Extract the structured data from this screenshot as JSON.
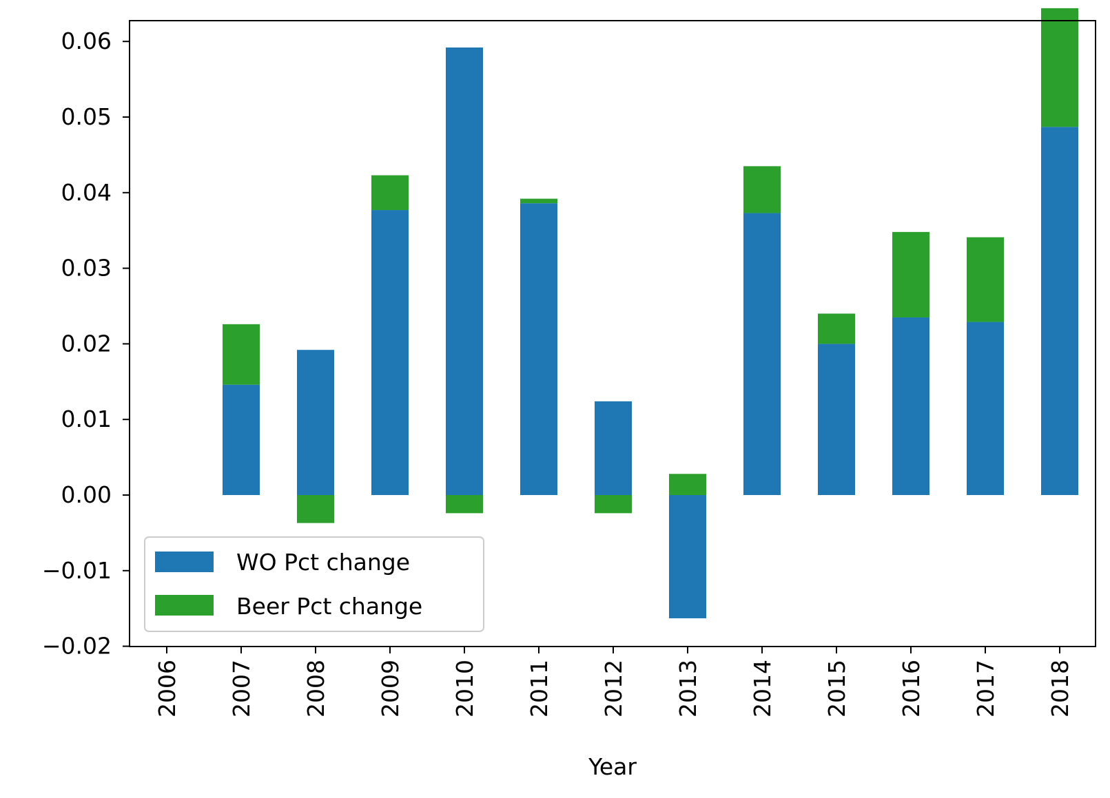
{
  "chart_data": {
    "type": "bar",
    "stacked": true,
    "xlabel": "Year",
    "ylabel": "",
    "title": "",
    "categories": [
      "2006",
      "2007",
      "2008",
      "2009",
      "2010",
      "2011",
      "2012",
      "2013",
      "2014",
      "2015",
      "2016",
      "2017",
      "2018"
    ],
    "series": [
      {
        "name": "WO Pct change",
        "color": "#1f77b4",
        "values": [
          null,
          0.0146,
          0.0192,
          0.0377,
          0.0592,
          0.0386,
          0.0124,
          -0.0163,
          0.0373,
          0.02,
          0.0235,
          0.0229,
          0.0487
        ]
      },
      {
        "name": "Beer Pct change",
        "color": "#2ca02c",
        "values": [
          null,
          0.008,
          -0.0037,
          0.0046,
          -0.0024,
          0.0006,
          -0.0024,
          0.0028,
          0.0062,
          0.004,
          0.0113,
          0.0112,
          0.0157
        ]
      }
    ],
    "ylim": [
      -0.02,
      0.063
    ],
    "yticks": [
      "0.06",
      "0.05",
      "0.04",
      "0.03",
      "0.02",
      "0.01",
      "0.00",
      "−0.01",
      "−0.02"
    ],
    "ytick_values": [
      0.06,
      0.05,
      0.04,
      0.03,
      0.02,
      0.01,
      0.0,
      -0.01,
      -0.02
    ],
    "grid": false,
    "legend_position": "lower-left"
  }
}
